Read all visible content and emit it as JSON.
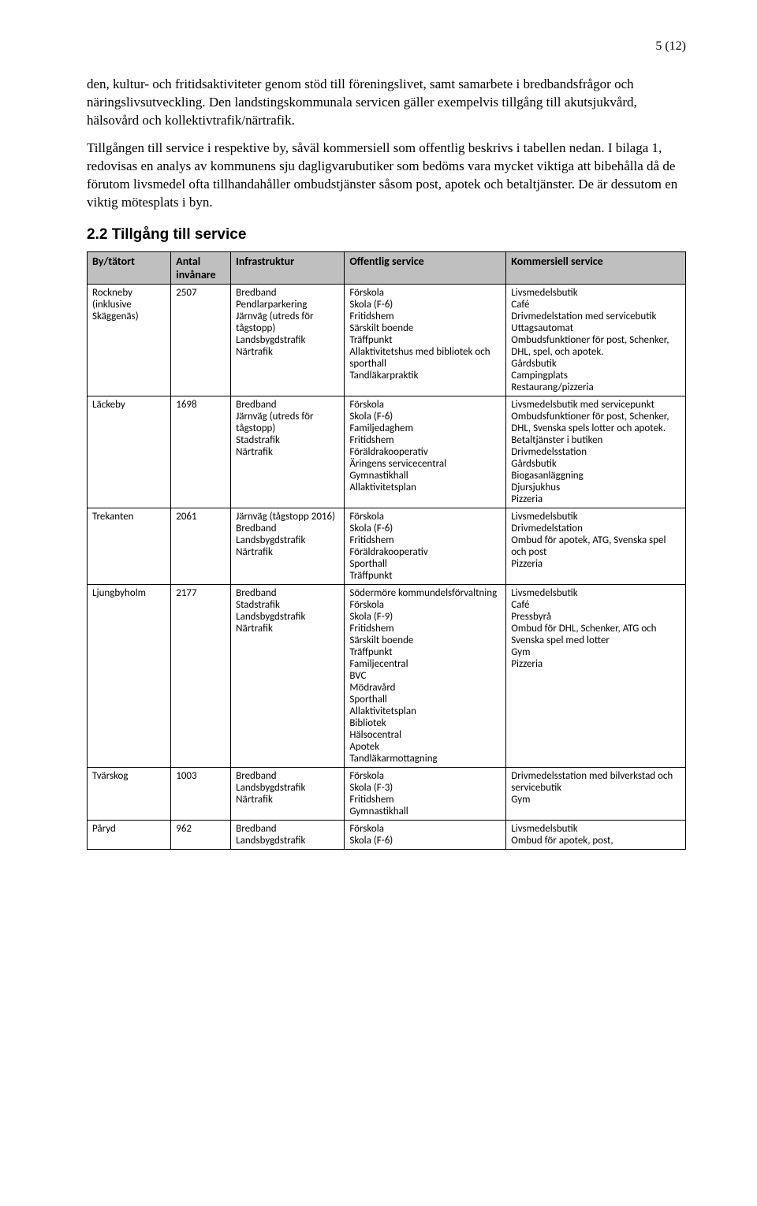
{
  "pageNumber": "5 (12)",
  "para1": "den, kultur- och fritidsaktiviteter genom stöd till föreningslivet, samt samarbete i bredbandsfrågor och näringslivsutveckling. Den landstingskommunala servicen gäller exempelvis tillgång till akutsjukvård, hälsovård och kollektivtrafik/närtrafik.",
  "para2": "Tillgången till service i respektive by, såväl kommersiell som offentlig beskrivs i tabellen nedan. I bilaga 1, redovisas en analys av kommunens sju dagligvarubutiker som bedöms vara mycket viktiga att bibehålla då de förutom livsmedel ofta tillhandahåller ombudstjänster såsom post, apotek och betaltjänster. De är dessutom en viktig mötesplats i byn.",
  "sectionHeading": "2.2 Tillgång till service",
  "table": {
    "headers": [
      "By/tätort",
      "Antal invånare",
      "Infrastruktur",
      "Offentlig service",
      "Kommersiell service"
    ],
    "rows": [
      {
        "by": "Rockneby (inklusive Skäggenäs)",
        "antal": "2507",
        "infra": [
          "Bredband",
          "Pendlarparkering",
          "Järnväg (utreds för tågstopp)",
          "Landsbygdstrafik",
          "Närtrafik"
        ],
        "offentlig": [
          "Förskola",
          "Skola (F-6)",
          "Fritidshem",
          "Särskilt boende",
          "Träffpunkt",
          "Allaktivitetshus med bibliotek och sporthall",
          "Tandläkarpraktik"
        ],
        "kommersiell": [
          "Livsmedelsbutik",
          "Café",
          "Drivmedelstation med servicebutik",
          "Uttagsautomat",
          "Ombudsfunktioner för post, Schenker, DHL, spel, och apotek.",
          "Gårdsbutik",
          "Campingplats",
          "Restaurang/pizzeria"
        ]
      },
      {
        "by": "Läckeby",
        "antal": "1698",
        "infra": [
          "Bredband",
          "Järnväg (utreds för tågstopp)",
          "Stadstrafik",
          "Närtrafik"
        ],
        "offentlig": [
          "Förskola",
          "Skola (F-6)",
          "Familjedaghem",
          "Fritidshem",
          "Föräldrakooperativ",
          "Äringens servicecentral",
          "Gymnastikhall",
          "Allaktivitetsplan"
        ],
        "kommersiell": [
          "Livsmedelsbutik med servicepunkt",
          "Ombudsfunktioner för post, Schenker, DHL, Svenska spels lotter och apotek.",
          "Betaltjänster i butiken",
          "Drivmedelsstation",
          "Gårdsbutik",
          "Biogasanläggning",
          "Djursjukhus",
          "Pizzeria"
        ]
      },
      {
        "by": "Trekanten",
        "antal": "2061",
        "infra": [
          "Järnväg (tågstopp 2016)",
          "Bredband",
          "Landsbygdstrafik",
          "Närtrafik"
        ],
        "offentlig": [
          "Förskola",
          "Skola (F-6)",
          "Fritidshem",
          "Föräldrakooperativ",
          "Sporthall",
          "Träffpunkt"
        ],
        "kommersiell": [
          "Livsmedelsbutik",
          "Drivmedelstation",
          "Ombud för apotek, ATG, Svenska spel och post",
          "Pizzeria"
        ]
      },
      {
        "by": "Ljungbyholm",
        "antal": "2177",
        "infra": [
          "Bredband",
          "Stadstrafik",
          "Landsbygdstrafik",
          "Närtrafik"
        ],
        "offentlig": [
          "Södermöre kommundelsförvaltning",
          "Förskola",
          "Skola (F-9)",
          "Fritidshem",
          "Särskilt boende",
          "Träffpunkt",
          "Familjecentral",
          "BVC",
          "Mödravård",
          "Sporthall",
          "Allaktivitetsplan",
          "Bibliotek",
          "Hälsocentral",
          "Apotek",
          "Tandläkarmottagning"
        ],
        "kommersiell": [
          "Livsmedelsbutik",
          "Café",
          "Pressbyrå",
          "Ombud för DHL, Schenker, ATG och Svenska spel med lotter",
          "Gym",
          "Pizzeria"
        ]
      },
      {
        "by": "Tvärskog",
        "antal": "1003",
        "infra": [
          "Bredband",
          "Landsbygdstrafik",
          "Närtrafik"
        ],
        "offentlig": [
          "Förskola",
          "Skola (F-3)",
          "Fritidshem",
          "Gymnastikhall"
        ],
        "kommersiell": [
          "Drivmedelsstation med bilverkstad och servicebutik",
          "Gym"
        ]
      },
      {
        "by": "Påryd",
        "antal": "962",
        "infra": [
          "Bredband",
          "Landsbygdstrafik"
        ],
        "offentlig": [
          "Förskola",
          "Skola (F-6)"
        ],
        "kommersiell": [
          "Livsmedelsbutik",
          "Ombud för apotek, post,"
        ]
      }
    ]
  }
}
